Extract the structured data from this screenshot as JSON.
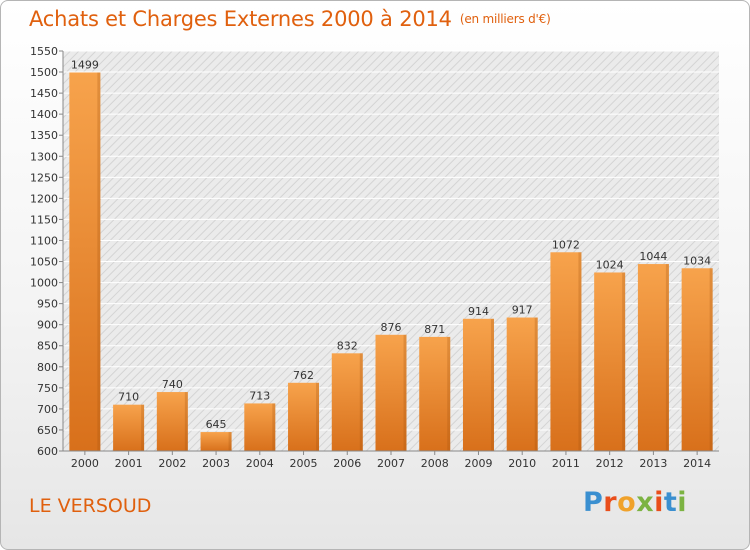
{
  "title": "Achats et Charges Externes 2000 à 2014",
  "subtitle": "(en milliers d'€)",
  "location": "LE VERSOUD",
  "logo": {
    "letters": [
      {
        "ch": "P",
        "color": "#3a8fd0"
      },
      {
        "ch": "r",
        "color": "#e94e1b"
      },
      {
        "ch": "o",
        "color": "#f0a22b"
      },
      {
        "ch": "x",
        "color": "#7cb342"
      },
      {
        "ch": "i",
        "color": "#e94e1b"
      },
      {
        "ch": "t",
        "color": "#3a8fd0"
      },
      {
        "ch": "i",
        "color": "#7cb342"
      }
    ]
  },
  "colors": {
    "bar_light": "#f7a34c",
    "bar_dark": "#d8701b",
    "accent": "#e0600e"
  },
  "chart_data": {
    "type": "bar",
    "categories": [
      "2000",
      "2001",
      "2002",
      "2003",
      "2004",
      "2005",
      "2006",
      "2007",
      "2008",
      "2009",
      "2010",
      "2011",
      "2012",
      "2013",
      "2014"
    ],
    "values": [
      1499,
      710,
      740,
      645,
      713,
      762,
      832,
      876,
      871,
      914,
      917,
      1072,
      1024,
      1044,
      1034
    ],
    "ylim": [
      600,
      1550
    ],
    "yticks": [
      600,
      650,
      700,
      750,
      800,
      850,
      900,
      950,
      1000,
      1050,
      1100,
      1150,
      1200,
      1250,
      1300,
      1350,
      1400,
      1450,
      1500,
      1550
    ],
    "grid": true
  }
}
